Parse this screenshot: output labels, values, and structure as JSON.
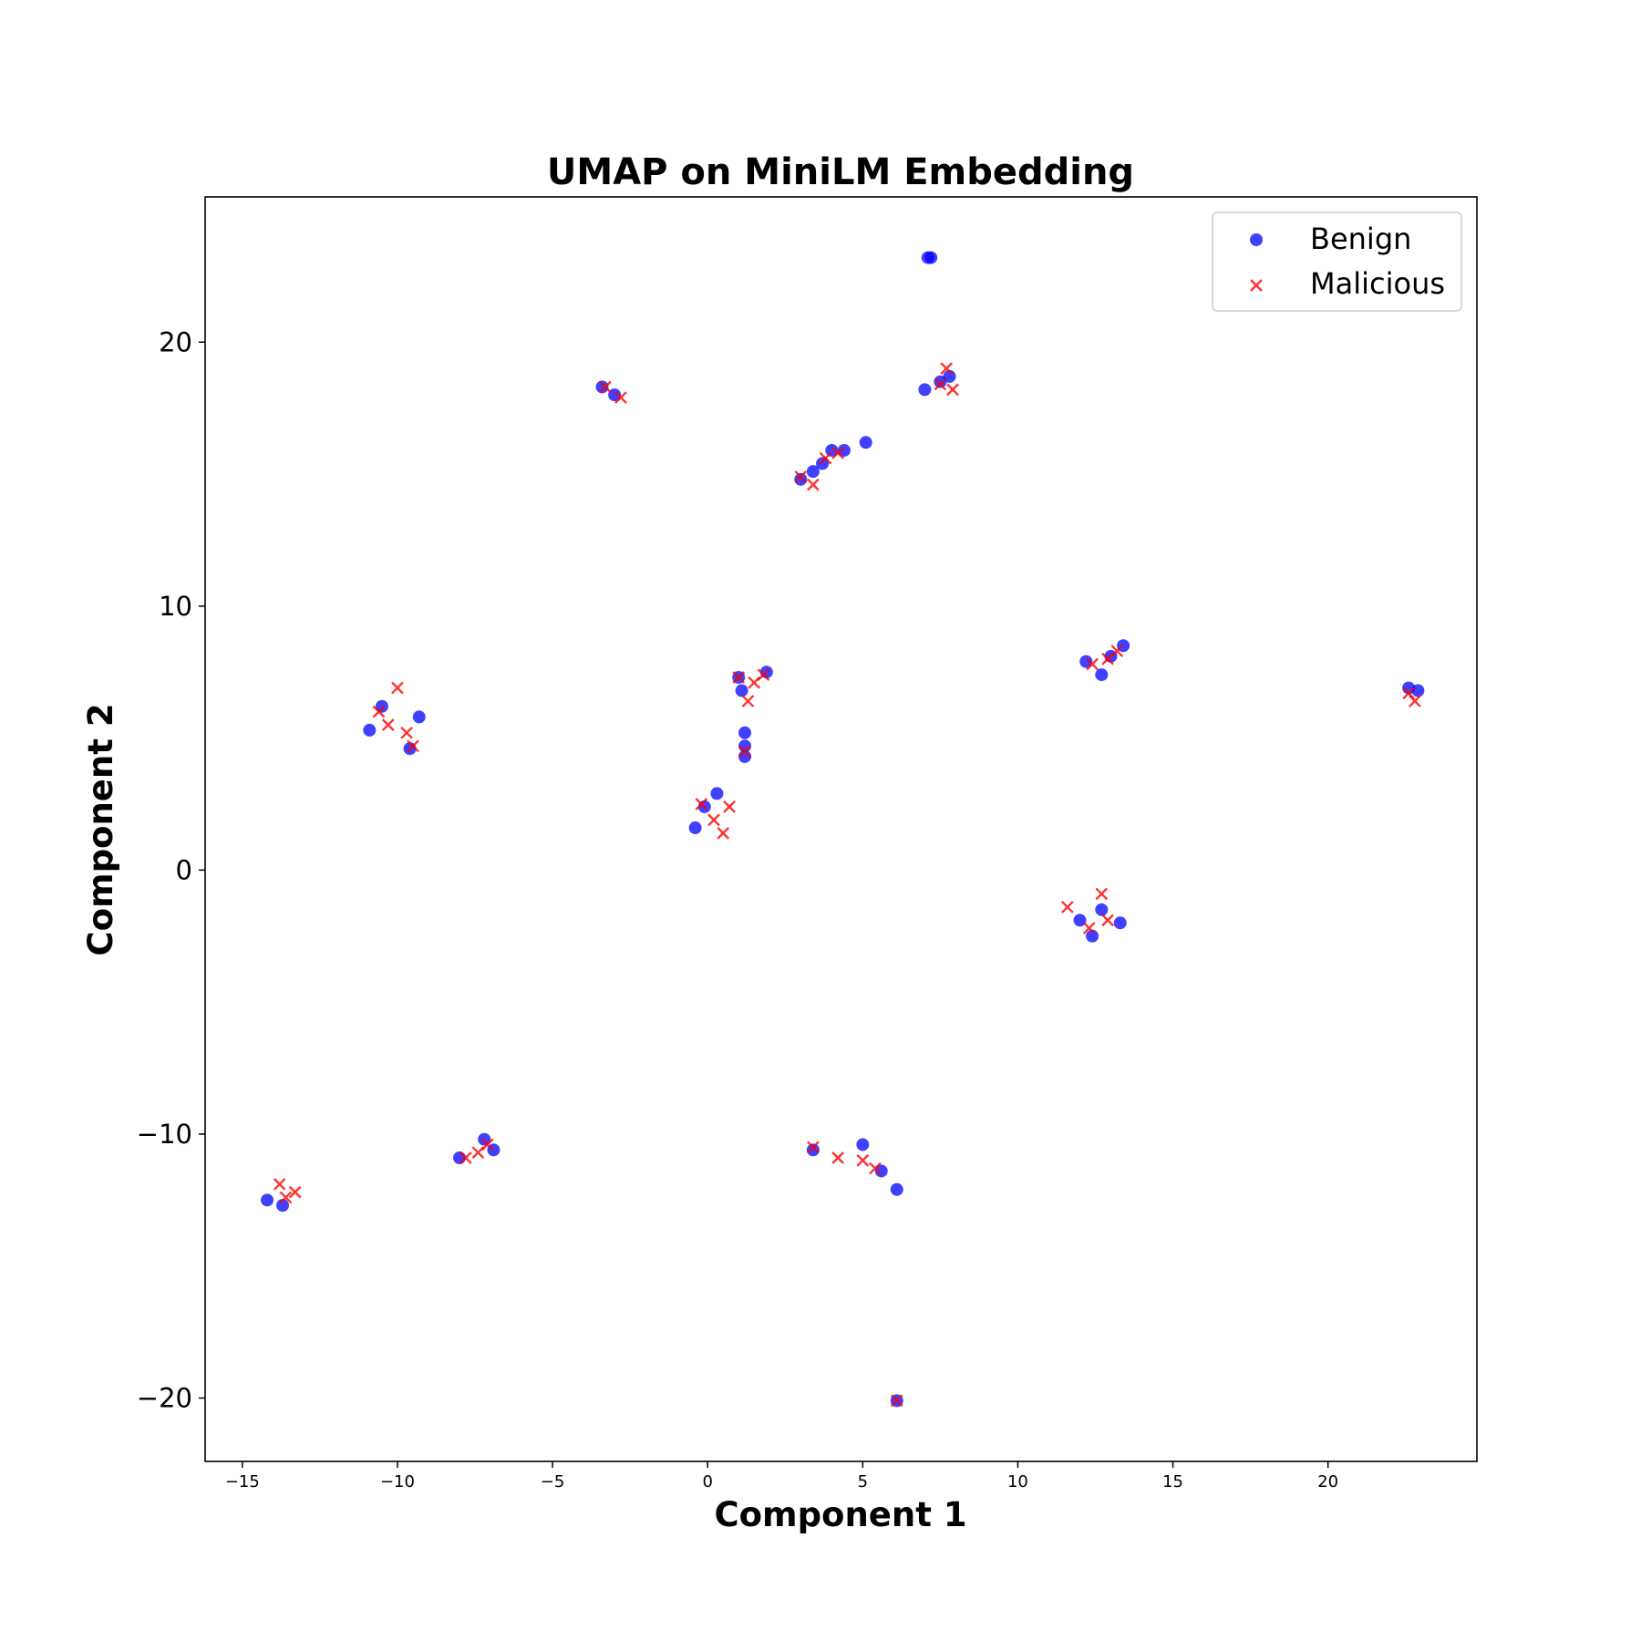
{
  "chart_data": {
    "type": "scatter",
    "title": "UMAP on MiniLM Embedding",
    "xlabel": "Component 1",
    "ylabel": "Component 2",
    "xlim": [
      -16.2,
      24.8
    ],
    "ylim": [
      -22.4,
      25.5
    ],
    "x_ticks": [
      -15,
      -10,
      -5,
      0,
      5,
      10,
      15,
      20
    ],
    "y_ticks": [
      -20,
      -10,
      0,
      10,
      20
    ],
    "x_tick_labels": [
      "−15",
      "−10",
      "−5",
      "0",
      "5",
      "10",
      "15",
      "20"
    ],
    "y_tick_labels": [
      "−20",
      "−10",
      "0",
      "10",
      "20"
    ],
    "grid": false,
    "legend_position": "top-right",
    "series": [
      {
        "name": "Benign",
        "marker": "circle",
        "color": "#0000ff",
        "points": [
          [
            7.1,
            23.2
          ],
          [
            7.2,
            23.2
          ],
          [
            7.0,
            18.2
          ],
          [
            7.5,
            18.5
          ],
          [
            7.8,
            18.7
          ],
          [
            3.0,
            14.8
          ],
          [
            3.4,
            15.1
          ],
          [
            3.7,
            15.4
          ],
          [
            4.0,
            15.9
          ],
          [
            4.4,
            15.9
          ],
          [
            5.1,
            16.2
          ],
          [
            -3.4,
            18.3
          ],
          [
            -3.0,
            18.0
          ],
          [
            12.2,
            7.9
          ],
          [
            12.7,
            7.4
          ],
          [
            13.0,
            8.1
          ],
          [
            13.4,
            8.5
          ],
          [
            22.6,
            6.9
          ],
          [
            22.9,
            6.8
          ],
          [
            1.0,
            7.3
          ],
          [
            1.9,
            7.5
          ],
          [
            1.1,
            6.8
          ],
          [
            1.2,
            4.3
          ],
          [
            1.2,
            4.7
          ],
          [
            1.2,
            5.2
          ],
          [
            -10.9,
            5.3
          ],
          [
            -10.5,
            6.2
          ],
          [
            -9.6,
            4.6
          ],
          [
            -9.3,
            5.8
          ],
          [
            -0.4,
            1.6
          ],
          [
            0.3,
            2.9
          ],
          [
            -0.1,
            2.4
          ],
          [
            12.0,
            -1.9
          ],
          [
            12.4,
            -2.5
          ],
          [
            13.3,
            -2.0
          ],
          [
            12.7,
            -1.5
          ],
          [
            -14.2,
            -12.5
          ],
          [
            -13.7,
            -12.7
          ],
          [
            -8.0,
            -10.9
          ],
          [
            -7.2,
            -10.2
          ],
          [
            -6.9,
            -10.6
          ],
          [
            3.4,
            -10.6
          ],
          [
            5.0,
            -10.4
          ],
          [
            5.6,
            -11.4
          ],
          [
            6.1,
            -12.1
          ],
          [
            6.1,
            -20.1
          ]
        ]
      },
      {
        "name": "Malicious",
        "marker": "x",
        "color": "#ff0000",
        "points": [
          [
            7.7,
            19.0
          ],
          [
            7.5,
            18.4
          ],
          [
            7.9,
            18.2
          ],
          [
            3.0,
            14.9
          ],
          [
            3.4,
            14.6
          ],
          [
            3.8,
            15.6
          ],
          [
            4.2,
            15.8
          ],
          [
            -3.3,
            18.3
          ],
          [
            -2.8,
            17.9
          ],
          [
            12.4,
            7.8
          ],
          [
            12.9,
            8.0
          ],
          [
            13.2,
            8.3
          ],
          [
            22.6,
            6.7
          ],
          [
            22.8,
            6.4
          ],
          [
            1.0,
            7.3
          ],
          [
            1.5,
            7.1
          ],
          [
            1.3,
            6.4
          ],
          [
            1.8,
            7.4
          ],
          [
            1.2,
            4.5
          ],
          [
            -10.6,
            6.0
          ],
          [
            -10.0,
            6.9
          ],
          [
            -9.7,
            5.2
          ],
          [
            -9.5,
            4.7
          ],
          [
            -10.3,
            5.5
          ],
          [
            -0.2,
            2.5
          ],
          [
            0.2,
            1.9
          ],
          [
            0.5,
            1.4
          ],
          [
            0.7,
            2.4
          ],
          [
            11.6,
            -1.4
          ],
          [
            12.3,
            -2.2
          ],
          [
            12.7,
            -0.9
          ],
          [
            12.9,
            -1.9
          ],
          [
            -13.8,
            -11.9
          ],
          [
            -13.6,
            -12.4
          ],
          [
            -13.3,
            -12.2
          ],
          [
            -7.8,
            -10.9
          ],
          [
            -7.4,
            -10.7
          ],
          [
            -7.1,
            -10.4
          ],
          [
            3.4,
            -10.5
          ],
          [
            4.2,
            -10.9
          ],
          [
            5.0,
            -11.0
          ],
          [
            5.4,
            -11.3
          ],
          [
            6.1,
            -20.1
          ]
        ]
      }
    ]
  }
}
